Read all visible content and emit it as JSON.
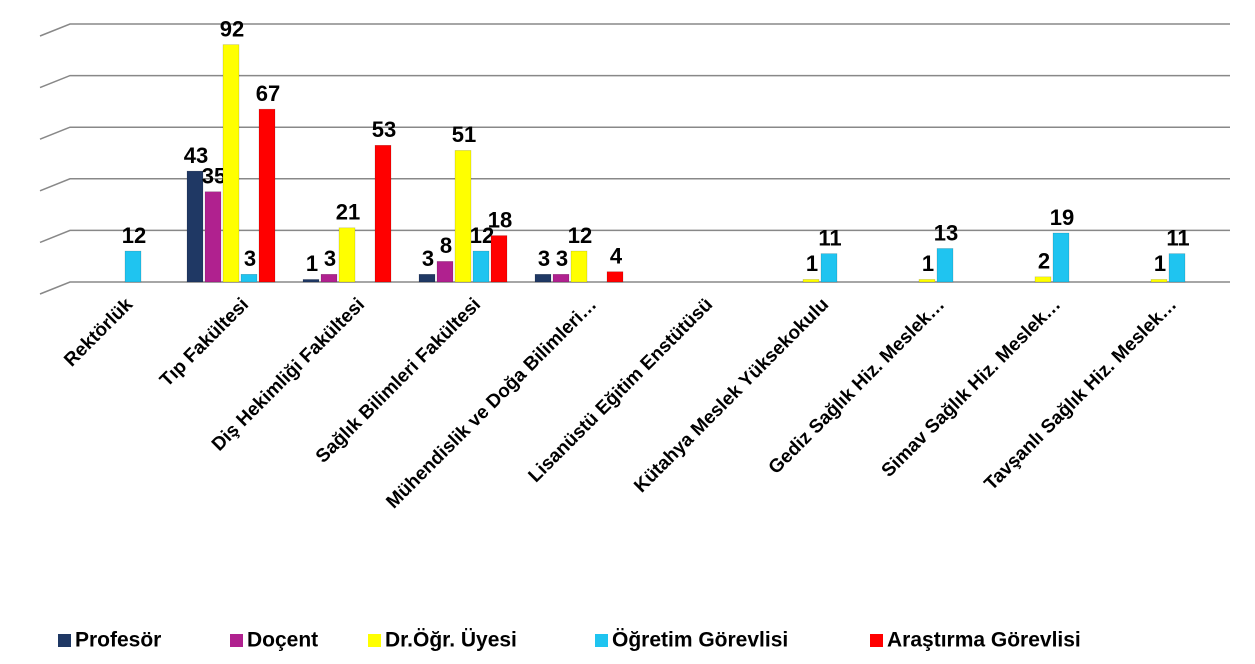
{
  "chart_data": {
    "type": "bar",
    "categories": [
      "Rektörlük",
      "Tıp Fakültesi",
      "Diş Hekimliği Fakültesi",
      "Sağlık Bilimleri Fakültesi",
      "Mühendislik ve Doğa Bilimleri…",
      "Lisanüstü Eğitim Enstütüsü",
      "Kütahya Meslek Yüksekokulu",
      "Gediz Sağlık Hiz. Meslek…",
      "Simav Sağlık Hiz. Meslek…",
      "Tavşanlı Sağlık Hiz. Meslek…"
    ],
    "series": [
      {
        "name": "Profesör",
        "color": "#1f3864",
        "values": [
          null,
          43,
          1,
          3,
          3,
          null,
          null,
          null,
          null,
          null
        ]
      },
      {
        "name": "Doçent",
        "color": "#b0218f",
        "values": [
          null,
          35,
          3,
          8,
          3,
          null,
          null,
          null,
          null,
          null
        ]
      },
      {
        "name": "Dr.Öğr. Üyesi",
        "color": "#ffff00",
        "values": [
          null,
          92,
          21,
          51,
          12,
          null,
          1,
          1,
          2,
          1
        ]
      },
      {
        "name": "Öğretim Görevlisi",
        "color": "#1fc4f0",
        "values": [
          12,
          3,
          null,
          12,
          null,
          null,
          11,
          13,
          19,
          11
        ]
      },
      {
        "name": "Araştırma Görevlisi",
        "color": "#ff0000",
        "values": [
          null,
          67,
          53,
          18,
          4,
          null,
          null,
          null,
          null,
          null
        ]
      }
    ],
    "ylim": [
      0,
      100
    ],
    "yticks": [
      0,
      20,
      40,
      60,
      80,
      100
    ],
    "grid": true,
    "legend": "bottom"
  }
}
